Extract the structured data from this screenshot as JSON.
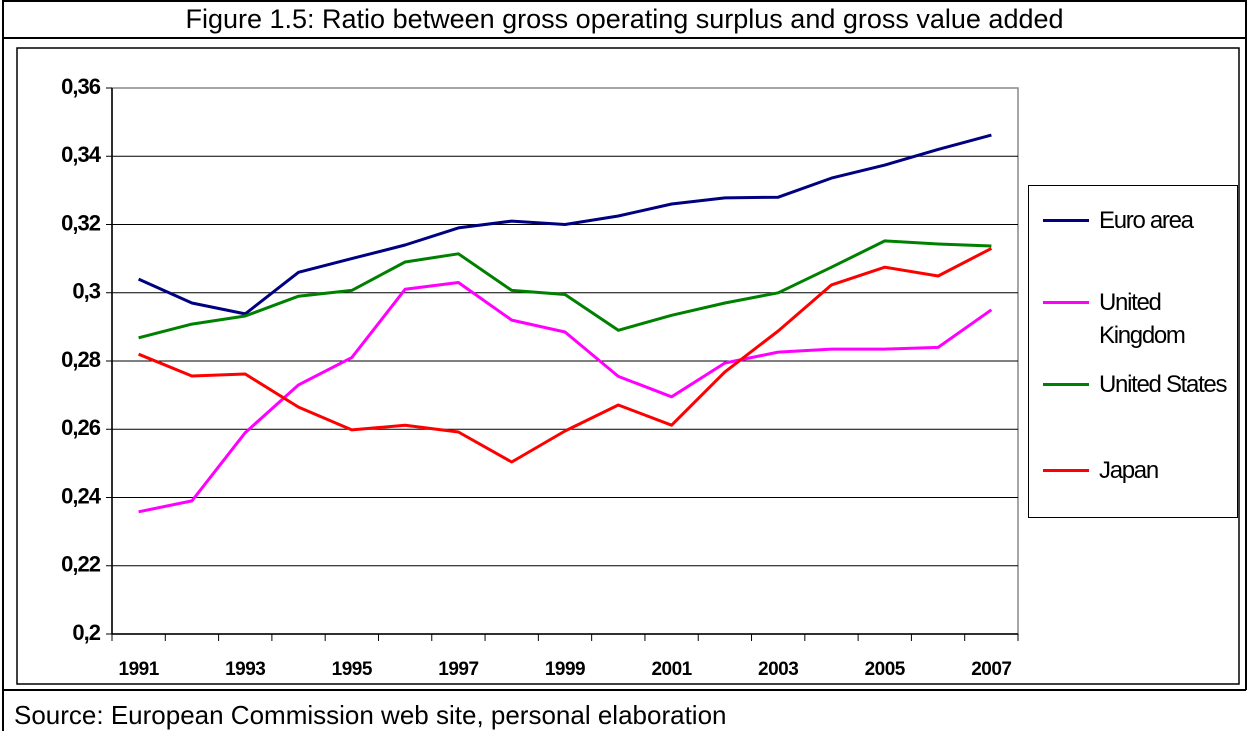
{
  "chart_data": {
    "type": "line",
    "title": "Figure 1.5: Ratio between gross operating surplus and gross value added",
    "source": "Source: European Commission web site, personal elaboration",
    "categories": [
      "1991",
      null,
      "1993",
      null,
      "1995",
      null,
      "1997",
      null,
      "1999",
      null,
      "2001",
      null,
      "2003",
      null,
      "2005",
      null,
      "2007"
    ],
    "series": [
      {
        "name": "Euro area",
        "color": "#000080",
        "values": [
          0.304,
          0.297,
          0.2938,
          0.306,
          0.31,
          0.314,
          0.319,
          0.321,
          0.32,
          0.3225,
          0.326,
          0.3278,
          0.328,
          0.3336,
          0.3374,
          0.342,
          0.3462
        ]
      },
      {
        "name": "United Kingdom",
        "color": "#ff00ff",
        "values": [
          0.2358,
          0.239,
          0.259,
          0.273,
          0.281,
          0.301,
          0.303,
          0.292,
          0.2885,
          0.2755,
          0.2695,
          0.2794,
          0.2826,
          0.2835,
          0.2835,
          0.284,
          0.295
        ]
      },
      {
        "name": "United States",
        "color": "#008000",
        "values": [
          0.2868,
          0.2908,
          0.2932,
          0.299,
          0.3007,
          0.309,
          0.3114,
          0.3007,
          0.2995,
          0.289,
          0.2934,
          0.297,
          0.3,
          0.3075,
          0.3152,
          0.3143,
          0.3137
        ]
      },
      {
        "name": "Japan",
        "color": "#ff0000",
        "values": [
          0.282,
          0.2756,
          0.2762,
          0.2665,
          0.2598,
          0.2612,
          0.2592,
          0.2504,
          0.2595,
          0.2671,
          0.2612,
          0.2768,
          0.2888,
          0.3023,
          0.3075,
          0.3049,
          0.313
        ]
      }
    ],
    "ylim": [
      0.2,
      0.36
    ],
    "yticks": [
      {
        "value": 0.2,
        "label": "0,2"
      },
      {
        "value": 0.22,
        "label": "0,22"
      },
      {
        "value": 0.24,
        "label": "0,24"
      },
      {
        "value": 0.26,
        "label": "0,26"
      },
      {
        "value": 0.28,
        "label": "0,28"
      },
      {
        "value": 0.3,
        "label": "0,3"
      },
      {
        "value": 0.32,
        "label": "0,32"
      },
      {
        "value": 0.34,
        "label": "0,34"
      },
      {
        "value": 0.36,
        "label": "0,36"
      }
    ],
    "grid": true,
    "legend": "right"
  }
}
